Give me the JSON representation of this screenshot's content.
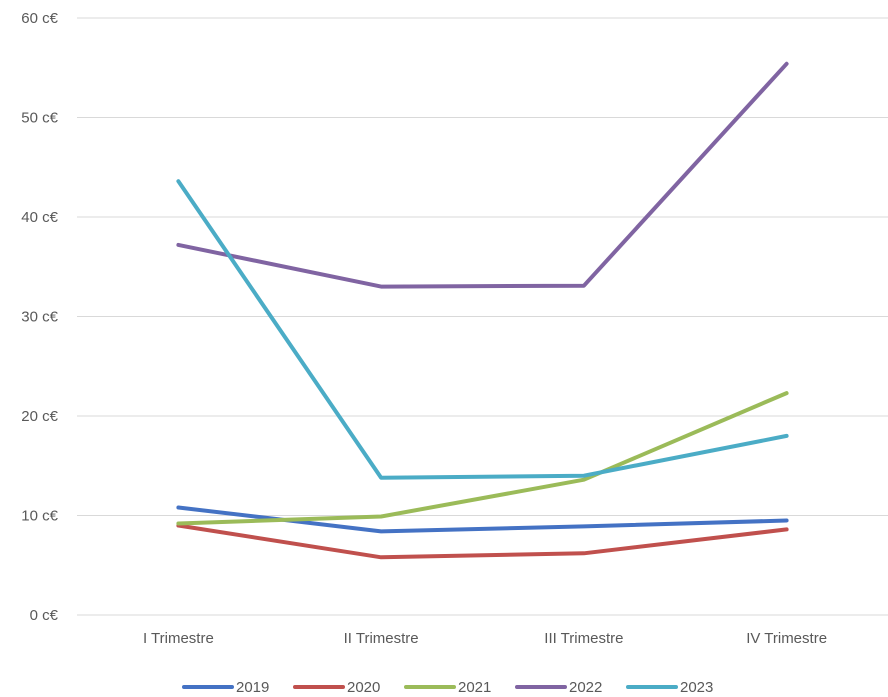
{
  "chart_data": {
    "type": "line",
    "title": "",
    "xlabel": "",
    "ylabel": "",
    "categories": [
      "I Trimestre",
      "II Trimestre",
      "III Trimestre",
      "IV Trimestre"
    ],
    "y_ticks": [
      "0 c€",
      "10 c€",
      "20 c€",
      "30 c€",
      "40 c€",
      "50 c€",
      "60 c€"
    ],
    "ylim": [
      0,
      60
    ],
    "grid": true,
    "legend_position": "bottom",
    "series": [
      {
        "name": "2019",
        "color": "#4472c4",
        "values": [
          10.8,
          8.4,
          8.9,
          9.5
        ]
      },
      {
        "name": "2020",
        "color": "#c0504d",
        "values": [
          9.0,
          5.8,
          6.2,
          8.6
        ]
      },
      {
        "name": "2021",
        "color": "#9bbb59",
        "values": [
          9.2,
          9.9,
          13.6,
          22.3
        ]
      },
      {
        "name": "2022",
        "color": "#8064a2",
        "values": [
          37.2,
          33.0,
          33.1,
          55.4
        ]
      },
      {
        "name": "2023",
        "color": "#4bacc6",
        "values": [
          43.6,
          13.8,
          14.0,
          18.0
        ]
      }
    ]
  }
}
